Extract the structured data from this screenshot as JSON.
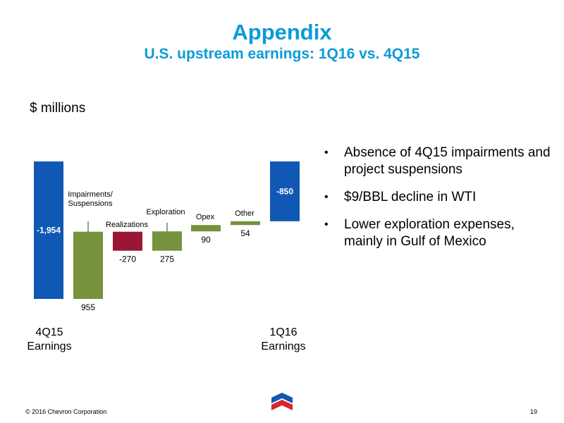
{
  "header": {
    "title": "Appendix",
    "subtitle": "U.S. upstream earnings: 1Q16 vs. 4Q15"
  },
  "units": "$ millions",
  "chart_data": {
    "type": "waterfall",
    "steps": [
      {
        "label": "4Q15\nEarnings",
        "value": -1954,
        "value_label": "-1,954",
        "kind": "total"
      },
      {
        "label": "Impairments/\nSuspensions",
        "value": 955,
        "value_label": "955",
        "kind": "increase"
      },
      {
        "label": "Realizations",
        "value": -270,
        "value_label": "-270",
        "kind": "decrease"
      },
      {
        "label": "Exploration",
        "value": 275,
        "value_label": "275",
        "kind": "increase"
      },
      {
        "label": "Opex",
        "value": 90,
        "value_label": "90",
        "kind": "increase"
      },
      {
        "label": "Other",
        "value": 54,
        "value_label": "54",
        "kind": "increase"
      },
      {
        "label": "1Q16\nEarnings",
        "value": -850,
        "value_label": "-850",
        "kind": "total"
      }
    ],
    "colors": {
      "total": "#1158b4",
      "increase": "#76923c",
      "decrease": "#9b1635"
    }
  },
  "bullets": [
    "Absence of 4Q15 impairments and project suspensions",
    "$9/BBL decline in WTI",
    "Lower exploration expenses, mainly in Gulf of Mexico"
  ],
  "footer": {
    "copyright": "© 2016 Chevron Corporation",
    "page": "19",
    "logo_text": "Chevron"
  }
}
